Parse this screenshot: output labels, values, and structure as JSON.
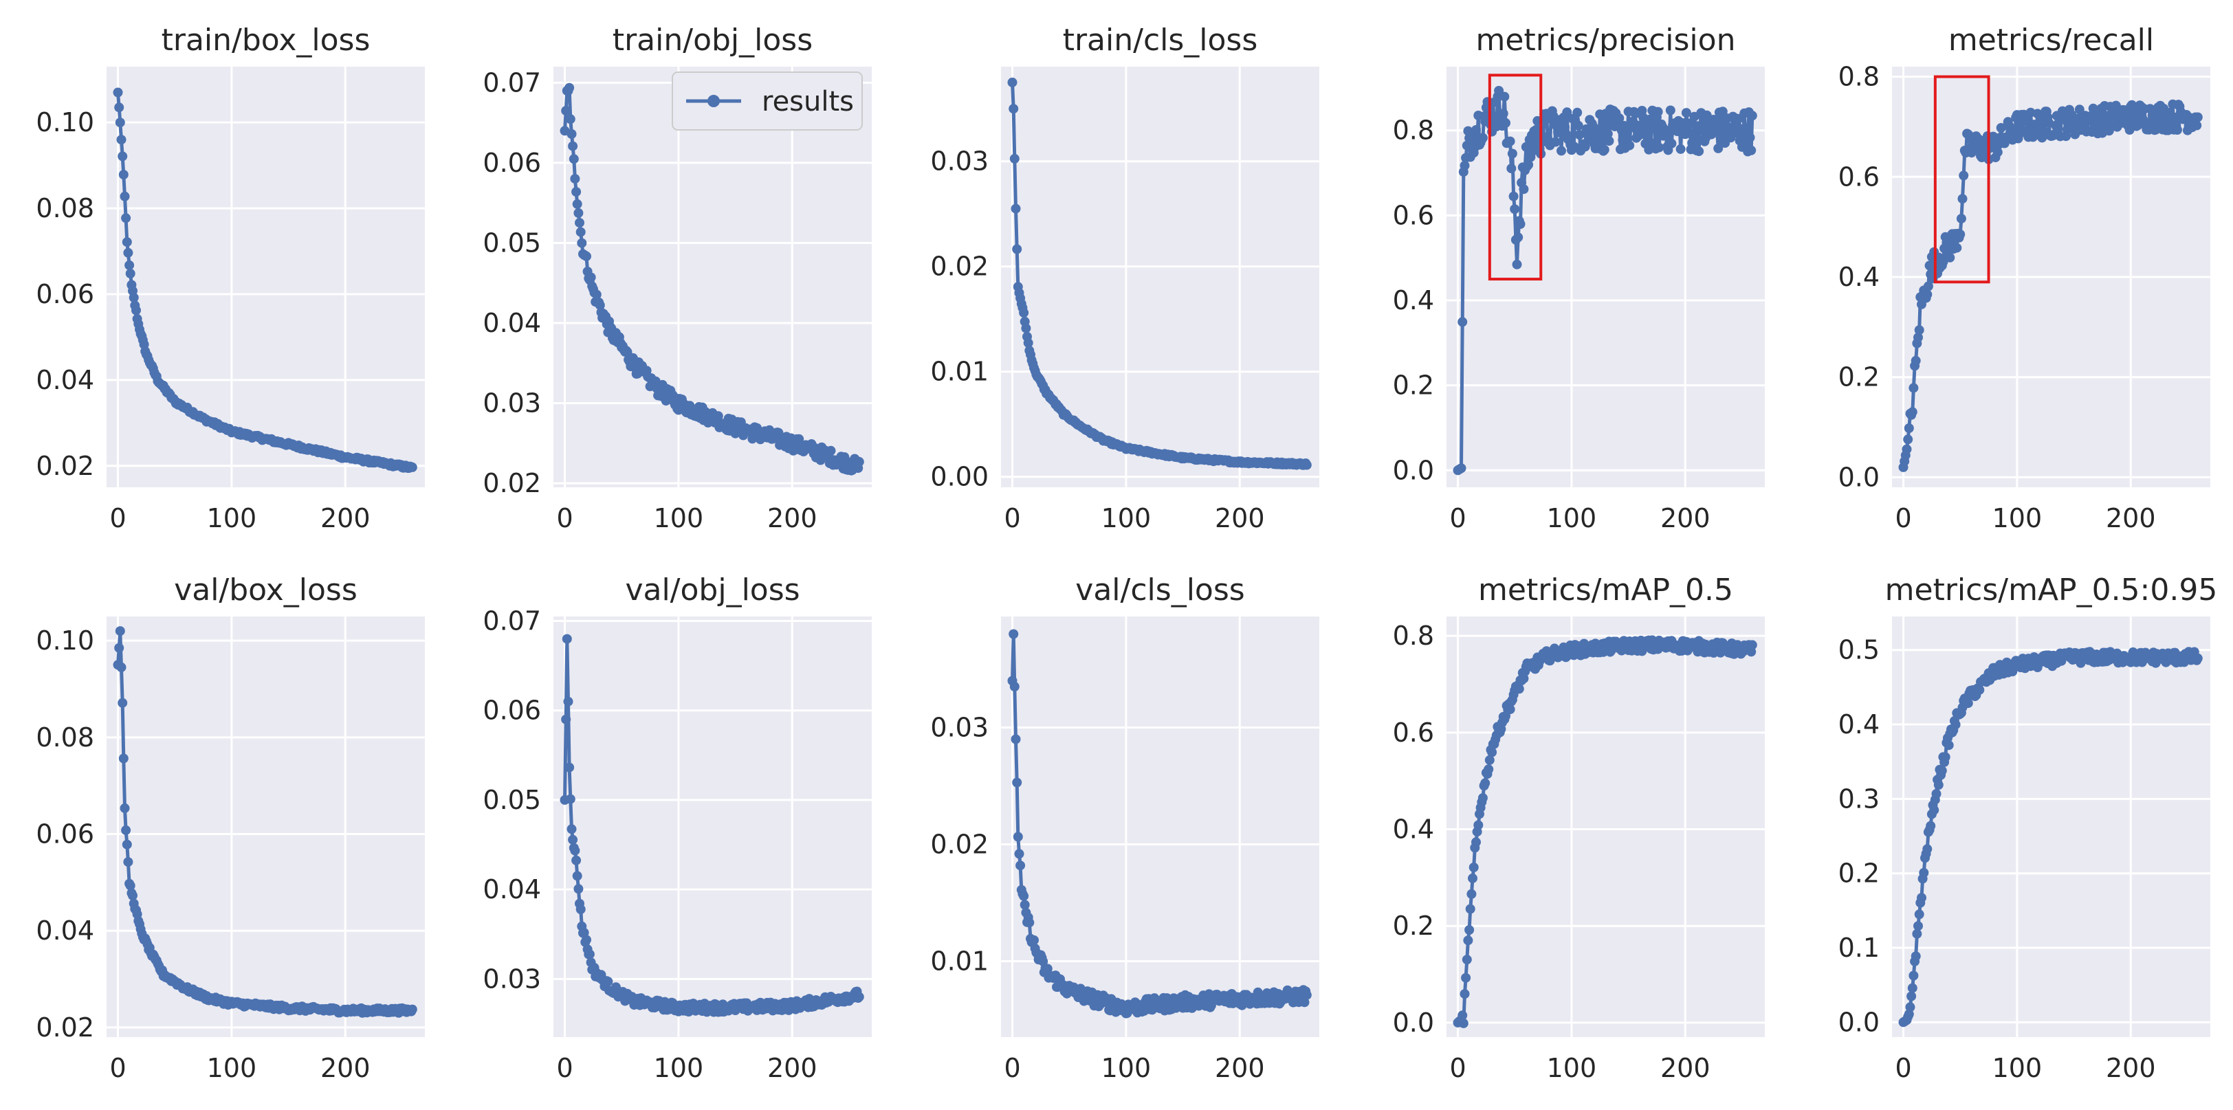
{
  "figure": {
    "background": "#ffffff",
    "plot_bg": "#eaeaf2",
    "grid_color": "#ffffff",
    "series_color": "#4c72b0",
    "highlight_color": "#e31a1c",
    "legend_label": "results"
  },
  "chart_data": [
    {
      "type": "line",
      "title": "train/box_loss",
      "xlim": [
        -10,
        270
      ],
      "ylim": [
        0.015,
        0.113
      ],
      "xticks": [
        0,
        100,
        200
      ],
      "xtick_labels": [
        "0",
        "100",
        "200"
      ],
      "yticks": [
        0.02,
        0.04,
        0.06,
        0.08,
        0.1
      ],
      "ytick_labels": [
        "0.02",
        "0.04",
        "0.06",
        "0.08",
        "0.10"
      ],
      "x_end": 259,
      "keypoints": [
        [
          0,
          0.107
        ],
        [
          2,
          0.1
        ],
        [
          5,
          0.088
        ],
        [
          8,
          0.072
        ],
        [
          12,
          0.062
        ],
        [
          18,
          0.053
        ],
        [
          25,
          0.046
        ],
        [
          35,
          0.04
        ],
        [
          50,
          0.035
        ],
        [
          75,
          0.031
        ],
        [
          100,
          0.028
        ],
        [
          150,
          0.025
        ],
        [
          200,
          0.022
        ],
        [
          259,
          0.0195
        ]
      ],
      "noise": 0.0004
    },
    {
      "type": "line",
      "title": "train/obj_loss",
      "xlim": [
        -10,
        270
      ],
      "ylim": [
        0.0195,
        0.072
      ],
      "xticks": [
        0,
        100,
        200
      ],
      "xtick_labels": [
        "0",
        "100",
        "200"
      ],
      "yticks": [
        0.02,
        0.03,
        0.04,
        0.05,
        0.06,
        0.07
      ],
      "ytick_labels": [
        "0.02",
        "0.03",
        "0.04",
        "0.05",
        "0.06",
        "0.07"
      ],
      "x_end": 259,
      "legend": true,
      "keypoints": [
        [
          0,
          0.064
        ],
        [
          2,
          0.069
        ],
        [
          4,
          0.069
        ],
        [
          6,
          0.063
        ],
        [
          10,
          0.057
        ],
        [
          15,
          0.05
        ],
        [
          25,
          0.044
        ],
        [
          40,
          0.039
        ],
        [
          60,
          0.035
        ],
        [
          80,
          0.032
        ],
        [
          100,
          0.03
        ],
        [
          150,
          0.027
        ],
        [
          200,
          0.025
        ],
        [
          259,
          0.022
        ]
      ],
      "noise": 0.0009
    },
    {
      "type": "line",
      "title": "train/cls_loss",
      "xlim": [
        -10,
        270
      ],
      "ylim": [
        -0.001,
        0.039
      ],
      "xticks": [
        0,
        100,
        200
      ],
      "xtick_labels": [
        "0",
        "100",
        "200"
      ],
      "yticks": [
        0.0,
        0.01,
        0.02,
        0.03
      ],
      "ytick_labels": [
        "0.00",
        "0.01",
        "0.02",
        "0.03"
      ],
      "x_end": 259,
      "keypoints": [
        [
          0,
          0.0375
        ],
        [
          1,
          0.035
        ],
        [
          3,
          0.0255
        ],
        [
          5,
          0.018
        ],
        [
          10,
          0.0155
        ],
        [
          15,
          0.012
        ],
        [
          20,
          0.01
        ],
        [
          30,
          0.008
        ],
        [
          45,
          0.006
        ],
        [
          60,
          0.0048
        ],
        [
          80,
          0.0035
        ],
        [
          100,
          0.0027
        ],
        [
          150,
          0.0018
        ],
        [
          200,
          0.0014
        ],
        [
          259,
          0.0012
        ]
      ],
      "noise": 0.00012
    },
    {
      "type": "line",
      "title": "metrics/precision",
      "xlim": [
        -10,
        270
      ],
      "ylim": [
        -0.04,
        0.95
      ],
      "xticks": [
        0,
        100,
        200
      ],
      "xtick_labels": [
        "0",
        "100",
        "200"
      ],
      "yticks": [
        0.0,
        0.2,
        0.4,
        0.6,
        0.8
      ],
      "ytick_labels": [
        "0.0",
        "0.2",
        "0.4",
        "0.6",
        "0.8"
      ],
      "x_end": 259,
      "keypoints": [
        [
          0,
          0.0
        ],
        [
          3,
          0.005
        ],
        [
          5,
          0.68
        ],
        [
          10,
          0.78
        ],
        [
          20,
          0.82
        ],
        [
          40,
          0.86
        ],
        [
          48,
          0.7
        ],
        [
          52,
          0.52
        ],
        [
          56,
          0.66
        ],
        [
          65,
          0.78
        ],
        [
          80,
          0.8
        ],
        [
          259,
          0.8
        ]
      ],
      "noise": 0.05,
      "highlight": {
        "x0": 28,
        "x1": 73,
        "y0": 0.45,
        "y1": 0.93
      }
    },
    {
      "type": "line",
      "title": "metrics/recall",
      "xlim": [
        -10,
        270
      ],
      "ylim": [
        -0.02,
        0.82
      ],
      "xticks": [
        0,
        100,
        200
      ],
      "xtick_labels": [
        "0",
        "100",
        "200"
      ],
      "yticks": [
        0.0,
        0.2,
        0.4,
        0.6,
        0.8
      ],
      "ytick_labels": [
        "0.0",
        "0.2",
        "0.4",
        "0.6",
        "0.8"
      ],
      "x_end": 259,
      "keypoints": [
        [
          0,
          0.02
        ],
        [
          5,
          0.08
        ],
        [
          10,
          0.2
        ],
        [
          15,
          0.34
        ],
        [
          25,
          0.42
        ],
        [
          35,
          0.45
        ],
        [
          45,
          0.47
        ],
        [
          50,
          0.5
        ],
        [
          55,
          0.66
        ],
        [
          65,
          0.66
        ],
        [
          80,
          0.66
        ],
        [
          100,
          0.7
        ],
        [
          150,
          0.71
        ],
        [
          200,
          0.72
        ],
        [
          259,
          0.72
        ]
      ],
      "noise": 0.028,
      "highlight": {
        "x0": 28,
        "x1": 75,
        "y0": 0.39,
        "y1": 0.8
      }
    },
    {
      "type": "line",
      "title": "val/box_loss",
      "xlim": [
        -10,
        270
      ],
      "ylim": [
        0.018,
        0.105
      ],
      "xticks": [
        0,
        100,
        200
      ],
      "xtick_labels": [
        "0",
        "100",
        "200"
      ],
      "yticks": [
        0.02,
        0.04,
        0.06,
        0.08,
        0.1
      ],
      "ytick_labels": [
        "0.02",
        "0.04",
        "0.06",
        "0.08",
        "0.10"
      ],
      "x_end": 259,
      "keypoints": [
        [
          0,
          0.095
        ],
        [
          2,
          0.102
        ],
        [
          4,
          0.087
        ],
        [
          6,
          0.065
        ],
        [
          10,
          0.05
        ],
        [
          15,
          0.045
        ],
        [
          20,
          0.04
        ],
        [
          30,
          0.035
        ],
        [
          40,
          0.031
        ],
        [
          60,
          0.028
        ],
        [
          80,
          0.026
        ],
        [
          100,
          0.025
        ],
        [
          150,
          0.024
        ],
        [
          200,
          0.0235
        ],
        [
          259,
          0.0235
        ]
      ],
      "noise": 0.0005
    },
    {
      "type": "line",
      "title": "val/obj_loss",
      "xlim": [
        -10,
        270
      ],
      "ylim": [
        0.0235,
        0.0705
      ],
      "xticks": [
        0,
        100,
        200
      ],
      "xtick_labels": [
        "0",
        "100",
        "200"
      ],
      "yticks": [
        0.03,
        0.04,
        0.05,
        0.06,
        0.07
      ],
      "ytick_labels": [
        "0.03",
        "0.04",
        "0.05",
        "0.06",
        "0.07"
      ],
      "x_end": 259,
      "keypoints": [
        [
          0,
          0.05
        ],
        [
          2,
          0.068
        ],
        [
          4,
          0.054
        ],
        [
          6,
          0.047
        ],
        [
          10,
          0.043
        ],
        [
          15,
          0.036
        ],
        [
          25,
          0.031
        ],
        [
          40,
          0.029
        ],
        [
          60,
          0.0275
        ],
        [
          100,
          0.0268
        ],
        [
          150,
          0.0268
        ],
        [
          200,
          0.027
        ],
        [
          259,
          0.0282
        ]
      ],
      "noise": 0.0005
    },
    {
      "type": "line",
      "title": "val/cls_loss",
      "xlim": [
        -10,
        270
      ],
      "ylim": [
        0.0035,
        0.0395
      ],
      "xticks": [
        0,
        100,
        200
      ],
      "xtick_labels": [
        "0",
        "100",
        "200"
      ],
      "yticks": [
        0.01,
        0.02,
        0.03
      ],
      "ytick_labels": [
        "0.01",
        "0.02",
        "0.03"
      ],
      "x_end": 259,
      "keypoints": [
        [
          0,
          0.034
        ],
        [
          1,
          0.038
        ],
        [
          3,
          0.029
        ],
        [
          5,
          0.021
        ],
        [
          8,
          0.016
        ],
        [
          12,
          0.014
        ],
        [
          20,
          0.011
        ],
        [
          30,
          0.009
        ],
        [
          50,
          0.0075
        ],
        [
          80,
          0.0065
        ],
        [
          100,
          0.006
        ],
        [
          150,
          0.0065
        ],
        [
          200,
          0.0068
        ],
        [
          259,
          0.007
        ]
      ],
      "noise": 0.0006
    },
    {
      "type": "line",
      "title": "metrics/mAP_0.5",
      "xlim": [
        -10,
        270
      ],
      "ylim": [
        -0.03,
        0.84
      ],
      "xticks": [
        0,
        100,
        200
      ],
      "xtick_labels": [
        "0",
        "100",
        "200"
      ],
      "yticks": [
        0.0,
        0.2,
        0.4,
        0.6,
        0.8
      ],
      "ytick_labels": [
        "0.0",
        "0.2",
        "0.4",
        "0.6",
        "0.8"
      ],
      "x_end": 259,
      "keypoints": [
        [
          0,
          0.0
        ],
        [
          5,
          0.01
        ],
        [
          10,
          0.2
        ],
        [
          15,
          0.35
        ],
        [
          20,
          0.45
        ],
        [
          30,
          0.57
        ],
        [
          40,
          0.63
        ],
        [
          50,
          0.68
        ],
        [
          60,
          0.73
        ],
        [
          80,
          0.76
        ],
        [
          100,
          0.77
        ],
        [
          150,
          0.78
        ],
        [
          200,
          0.78
        ],
        [
          259,
          0.77
        ]
      ],
      "noise": 0.012
    },
    {
      "type": "line",
      "title": "metrics/mAP_0.5:0.95",
      "xlim": [
        -10,
        270
      ],
      "ylim": [
        -0.02,
        0.545
      ],
      "xticks": [
        0,
        100,
        200
      ],
      "xtick_labels": [
        "0",
        "100",
        "200"
      ],
      "yticks": [
        0.0,
        0.1,
        0.2,
        0.3,
        0.4,
        0.5
      ],
      "ytick_labels": [
        "0.0",
        "0.1",
        "0.2",
        "0.3",
        "0.4",
        "0.5"
      ],
      "x_end": 259,
      "keypoints": [
        [
          0,
          0.0
        ],
        [
          5,
          0.005
        ],
        [
          10,
          0.08
        ],
        [
          15,
          0.16
        ],
        [
          20,
          0.23
        ],
        [
          30,
          0.32
        ],
        [
          40,
          0.38
        ],
        [
          50,
          0.42
        ],
        [
          60,
          0.44
        ],
        [
          80,
          0.47
        ],
        [
          100,
          0.48
        ],
        [
          150,
          0.49
        ],
        [
          200,
          0.49
        ],
        [
          259,
          0.49
        ]
      ],
      "noise": 0.008
    }
  ]
}
